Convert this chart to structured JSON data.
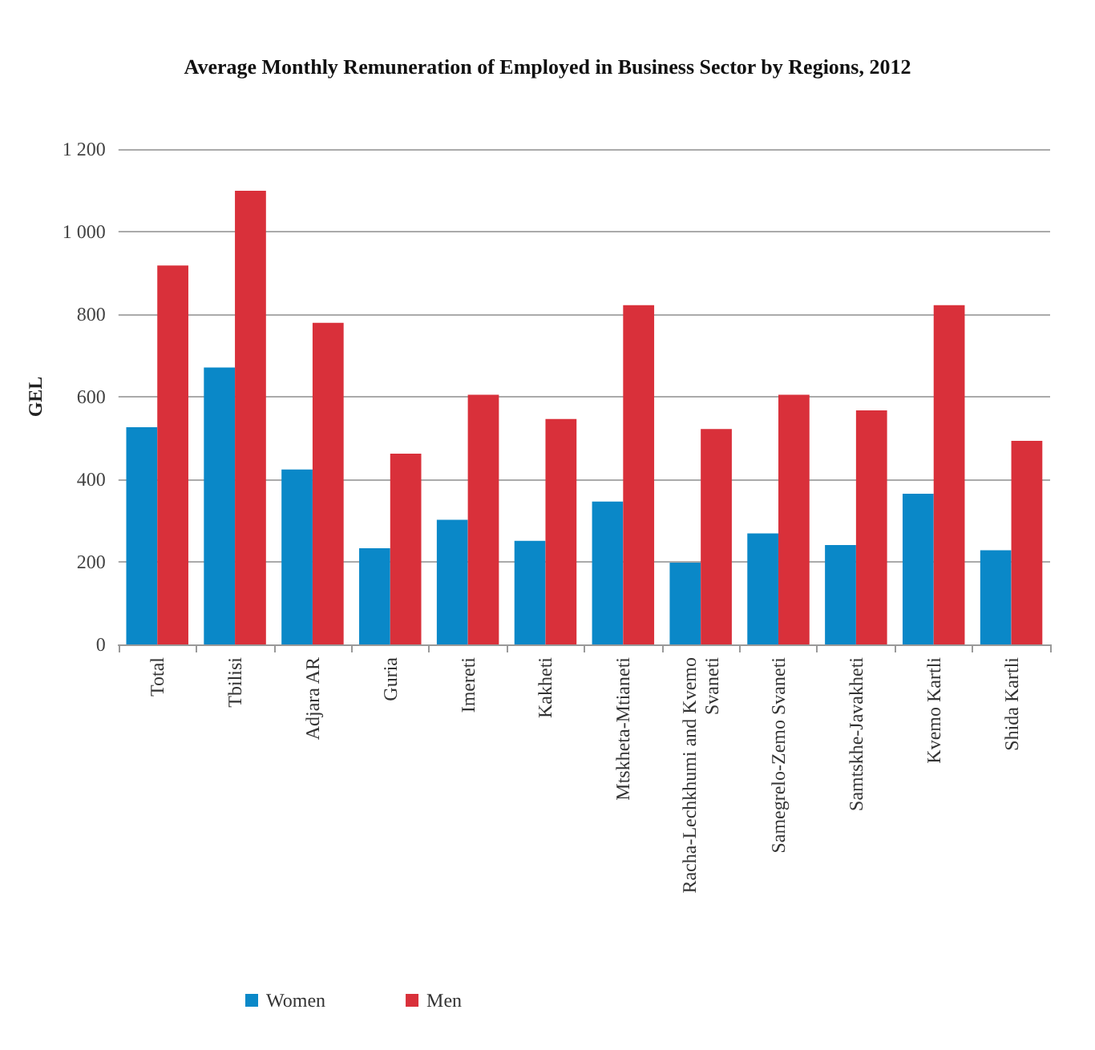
{
  "chart_data": {
    "type": "bar",
    "title": "Average Monthly Remuneration of Employed in Business Sector by Regions, 2012",
    "ylabel": "GEL",
    "categories": [
      "Total",
      "Tbilisi",
      "Adjara AR",
      "Guria",
      "Imereti",
      "Kakheti",
      "Mtskheta-Mtianeti",
      "Racha-Lechkhumi and Kvemo Svaneti",
      "Samegrelo-Zemo Svaneti",
      "Samtskhe-Javakheti",
      "Kvemo Kartli",
      "Shida Kartli"
    ],
    "series": [
      {
        "name": "Women",
        "color": "#0a88c8",
        "values": [
          526,
          671,
          424,
          233,
          302,
          251,
          346,
          198,
          269,
          241,
          365,
          228
        ]
      },
      {
        "name": "Men",
        "color": "#d9303a",
        "values": [
          918,
          1099,
          779,
          462,
          605,
          546,
          822,
          522,
          605,
          567,
          822,
          493
        ]
      }
    ],
    "ylim": [
      0,
      1200
    ],
    "yticks": [
      {
        "value": 0,
        "label": "0"
      },
      {
        "value": 200,
        "label": "200"
      },
      {
        "value": 400,
        "label": "400"
      },
      {
        "value": 600,
        "label": "600"
      },
      {
        "value": 800,
        "label": "800"
      },
      {
        "value": 1000,
        "label": "1 000"
      },
      {
        "value": 1200,
        "label": "1 200"
      }
    ],
    "grid": "y",
    "legend": "bottom left"
  }
}
